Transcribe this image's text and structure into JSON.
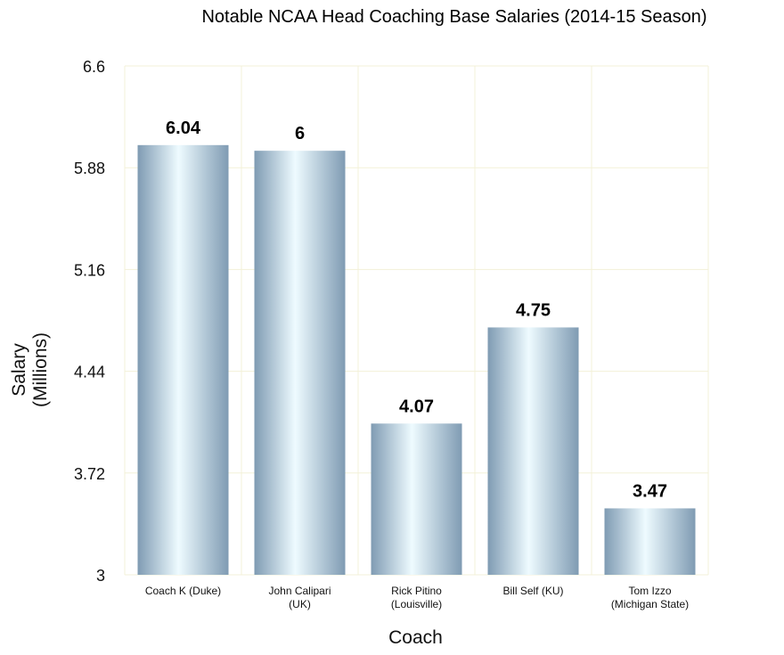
{
  "chart_data": {
    "type": "bar",
    "title": "Notable NCAA Head Coaching Base Salaries (2014-15 Season)",
    "xlabel": "Coach",
    "ylabel_lines": [
      "Salary",
      "(Millions)"
    ],
    "ylim": [
      3,
      6.6
    ],
    "yticks": [
      3,
      3.72,
      4.44,
      5.16,
      5.88,
      6.6
    ],
    "ytick_labels": [
      "3",
      "3.72",
      "4.44",
      "5.16",
      "5.88",
      "6.6"
    ],
    "categories": [
      [
        "Coach K (Duke)"
      ],
      [
        "John Calipari",
        "(UK)"
      ],
      [
        "Rick Pitino",
        "(Louisville)"
      ],
      [
        "Bill Self (KU)"
      ],
      [
        "Tom Izzo",
        "(Michigan State)"
      ]
    ],
    "values": [
      6.04,
      6,
      4.07,
      4.75,
      3.47
    ],
    "value_labels": [
      "6.04",
      "6",
      "4.07",
      "4.75",
      "3.47"
    ],
    "grid": true,
    "bar_colors": {
      "edge": "#7f9bb3",
      "center": "#eefbff"
    }
  }
}
